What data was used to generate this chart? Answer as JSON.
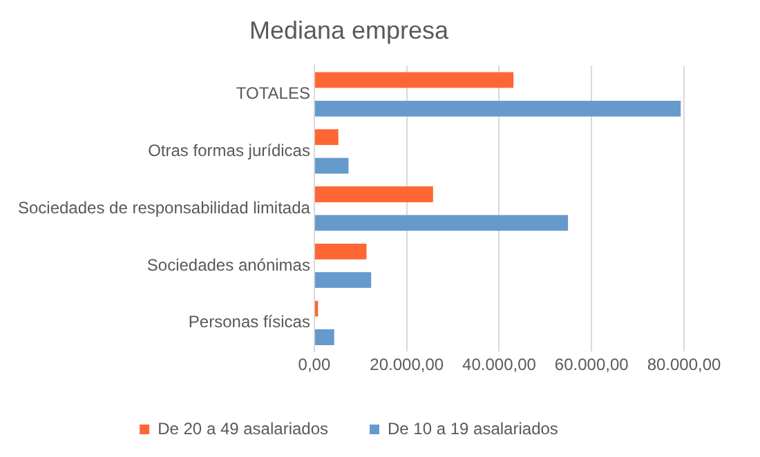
{
  "chart_data": {
    "type": "bar",
    "orientation": "horizontal",
    "title": "Mediana empresa",
    "categories": [
      "TOTALES",
      "Otras formas jurídicas",
      "Sociedades de responsabilidad limitada",
      "Sociedades anónimas",
      "Personas físicas"
    ],
    "series": [
      {
        "name": "De 20 a 49 asalariados",
        "color": "#ff6633",
        "values": [
          43100,
          5200,
          25700,
          11300,
          800
        ]
      },
      {
        "name": "De 10 a 19 asalariados",
        "color": "#6699cc",
        "values": [
          79300,
          7400,
          54900,
          12300,
          4300
        ]
      }
    ],
    "xlim": [
      0,
      80000
    ],
    "xticks": [
      {
        "value": 0,
        "label": "0,00"
      },
      {
        "value": 20000,
        "label": "20.000,00"
      },
      {
        "value": 40000,
        "label": "40.000,00"
      },
      {
        "value": 60000,
        "label": "60.000,00"
      },
      {
        "value": 80000,
        "label": "80.000,00"
      }
    ],
    "grid": "x",
    "legend": "bottom"
  }
}
